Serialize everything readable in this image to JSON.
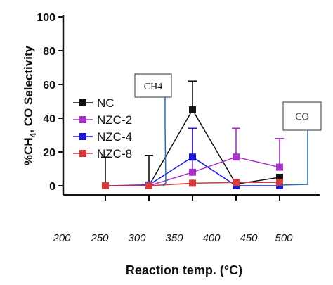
{
  "chart_data": {
    "type": "line",
    "ylabel_main": "%CH",
    "ylabel_sub": "4",
    "ylabel_rest": ", CO Selectivity",
    "xlabel": "Reaction temp. (°C)",
    "ylim": [
      0,
      100
    ],
    "yticks": [
      0,
      20,
      40,
      60,
      80,
      100
    ],
    "xtick_labels": [
      "200",
      "250",
      "300",
      "350",
      "400",
      "450",
      "500"
    ],
    "x": [
      250,
      300,
      350,
      400,
      450
    ],
    "legend_position": "left",
    "series": [
      {
        "name": "NC",
        "color": "#111111",
        "values": [
          0,
          0,
          45,
          1,
          5
        ],
        "errors": [
          17,
          18,
          17,
          0,
          0
        ]
      },
      {
        "name": "NZC-2",
        "color": "#a632c8",
        "values": [
          0,
          0,
          8,
          17,
          11
        ],
        "errors": [
          0,
          0,
          26,
          17,
          17
        ]
      },
      {
        "name": "NZC-4",
        "color": "#1a1ad6",
        "values": [
          0,
          0.5,
          17,
          0,
          0
        ],
        "errors": [
          0,
          0,
          17,
          0,
          0
        ]
      },
      {
        "name": "NZC-8",
        "color": "#d63a3a",
        "values": [
          0,
          0,
          1.5,
          2,
          2
        ],
        "errors": [
          0,
          0,
          0,
          0,
          0
        ]
      }
    ],
    "callouts": [
      {
        "label": "CH4",
        "color": "#2a6ab0"
      },
      {
        "label": "CO",
        "color": "#2a6ab0"
      }
    ]
  }
}
